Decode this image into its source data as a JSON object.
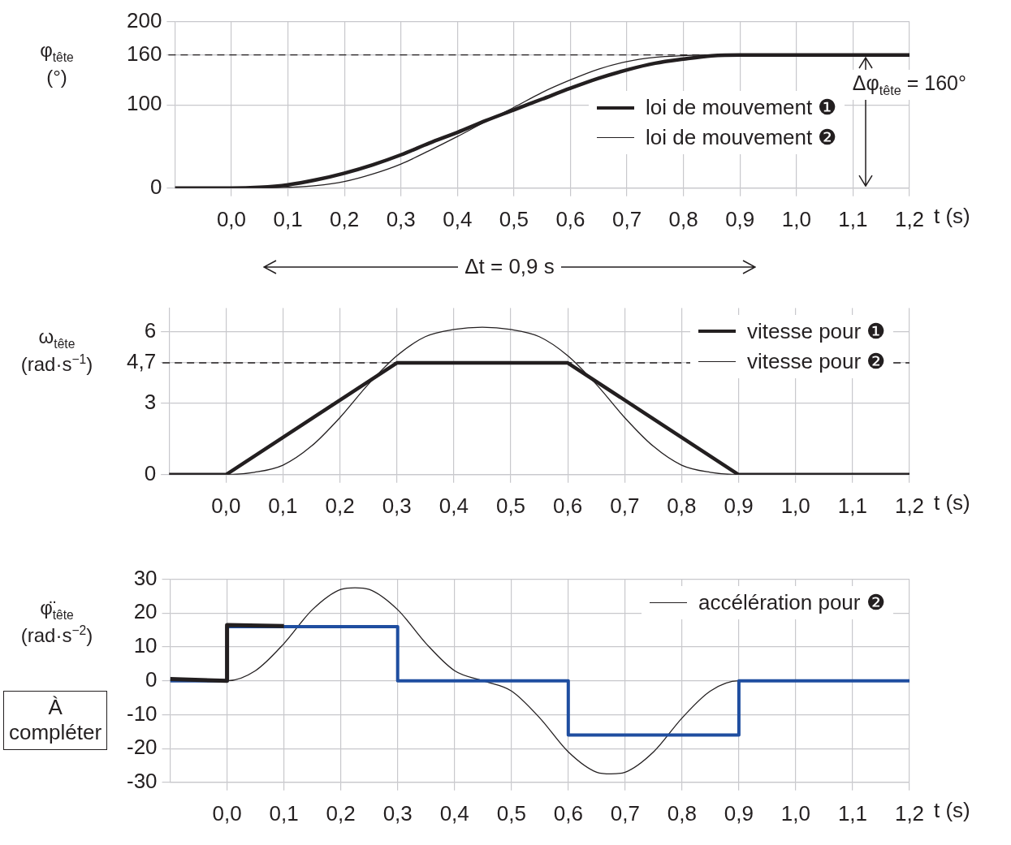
{
  "chart_data": [
    {
      "type": "line",
      "xlabel": "t (s)",
      "ylabel": "φ$_{tête}$ (°)",
      "xlim": [
        -0.1,
        1.2
      ],
      "ylim": [
        0,
        200
      ],
      "xticks": [
        {
          "value": 0,
          "label": "0,0"
        },
        {
          "value": 0.1,
          "label": "0,1"
        },
        {
          "value": 0.2,
          "label": "0,2"
        },
        {
          "value": 0.3,
          "label": "0,3"
        },
        {
          "value": 0.4,
          "label": "0,4"
        },
        {
          "value": 0.5,
          "label": "0,5"
        },
        {
          "value": 0.6,
          "label": "0,6"
        },
        {
          "value": 0.7,
          "label": "0,7"
        },
        {
          "value": 0.8,
          "label": "0,8"
        },
        {
          "value": 0.9,
          "label": "0,9"
        },
        {
          "value": 1,
          "label": "1,0"
        },
        {
          "value": 1.1,
          "label": "1,1"
        },
        {
          "value": 1.2,
          "label": "1,2"
        }
      ],
      "yticks": [
        0,
        100,
        160,
        200
      ],
      "grid": true,
      "legend": "right",
      "ref_lines": [
        {
          "axis": "y",
          "value": 160,
          "line_style": "dashed",
          "color": "#231f20"
        }
      ],
      "annotations": [
        "Δφ$_{tête}$ = 160°",
        "Δt = 0,9 s"
      ],
      "series": [
        {
          "name": "loi de mouvement ❶",
          "color": "#231f20",
          "x": [
            -0.1,
            0,
            0.05,
            0.1,
            0.15,
            0.2,
            0.25,
            0.3,
            0.35,
            0.4,
            0.45,
            0.5,
            0.55,
            0.6,
            0.65,
            0.7,
            0.75,
            0.8,
            0.85,
            0.9,
            1.2
          ],
          "values": [
            0,
            0,
            1,
            4,
            10,
            18,
            28,
            40,
            54,
            67,
            81,
            94,
            107,
            120,
            132,
            142,
            150,
            155,
            159,
            160,
            160
          ]
        },
        {
          "name": "loi de mouvement ❷",
          "color": "#231f20",
          "x": [
            -0.1,
            0,
            0.05,
            0.1,
            0.15,
            0.2,
            0.25,
            0.3,
            0.35,
            0.4,
            0.45,
            0.5,
            0.55,
            0.6,
            0.65,
            0.7,
            0.75,
            0.8,
            0.85,
            0.9,
            1.2
          ],
          "values": [
            0,
            0,
            0,
            1,
            3,
            8,
            17,
            29,
            45,
            62,
            80,
            97,
            115,
            130,
            143,
            152,
            157,
            159,
            160,
            160,
            160
          ]
        }
      ]
    },
    {
      "type": "line",
      "xlabel": "t (s)",
      "ylabel": "ω$_{tête}$ (rad·s$^{−1}$)",
      "xlim": [
        -0.1,
        1.2
      ],
      "ylim": [
        0,
        7
      ],
      "xticks": [
        {
          "value": 0,
          "label": "0,0"
        },
        {
          "value": 0.1,
          "label": "0,1"
        },
        {
          "value": 0.2,
          "label": "0,2"
        },
        {
          "value": 0.3,
          "label": "0,3"
        },
        {
          "value": 0.4,
          "label": "0,4"
        },
        {
          "value": 0.5,
          "label": "0,5"
        },
        {
          "value": 0.6,
          "label": "0,6"
        },
        {
          "value": 0.7,
          "label": "0,7"
        },
        {
          "value": 0.8,
          "label": "0,8"
        },
        {
          "value": 0.9,
          "label": "0,9"
        },
        {
          "value": 1,
          "label": "1,0"
        },
        {
          "value": 1.1,
          "label": "1,1"
        },
        {
          "value": 1.2,
          "label": "1,2"
        }
      ],
      "yticks": [
        0,
        3,
        {
          "value": 4.7,
          "label": "4,7"
        },
        6
      ],
      "grid": true,
      "legend": "top right",
      "ref_lines": [
        {
          "axis": "y",
          "value": 4.7,
          "line_style": "dashed",
          "color": "#231f20"
        }
      ],
      "series": [
        {
          "name": "vitesse pour ❶",
          "color": "#231f20",
          "x": [
            -0.1,
            0,
            0.3,
            0.6,
            0.9,
            1.2
          ],
          "values": [
            0,
            0,
            4.7,
            4.7,
            0,
            0
          ]
        },
        {
          "name": "vitesse pour ❷",
          "color": "#231f20",
          "x": [
            -0.1,
            0,
            0.05,
            0.1,
            0.15,
            0.2,
            0.25,
            0.3,
            0.35,
            0.4,
            0.45,
            0.5,
            0.55,
            0.6,
            0.65,
            0.7,
            0.75,
            0.8,
            0.85,
            0.9,
            1.2
          ],
          "values": [
            0,
            0,
            0.1,
            0.4,
            1.2,
            2.4,
            3.8,
            5.0,
            5.8,
            6.1,
            6.2,
            6.1,
            5.8,
            5.0,
            3.8,
            2.4,
            1.2,
            0.4,
            0.1,
            0,
            0
          ]
        }
      ]
    },
    {
      "type": "line",
      "xlabel": "t (s)",
      "ylabel": "φ̈$_{tête}$ (rad·s$^{−2}$)",
      "xlim": [
        -0.1,
        1.2
      ],
      "ylim": [
        -30,
        30
      ],
      "xticks": [
        {
          "value": 0,
          "label": "0,0"
        },
        {
          "value": 0.1,
          "label": "0,1"
        },
        {
          "value": 0.2,
          "label": "0,2"
        },
        {
          "value": 0.3,
          "label": "0,3"
        },
        {
          "value": 0.4,
          "label": "0,4"
        },
        {
          "value": 0.5,
          "label": "0,5"
        },
        {
          "value": 0.6,
          "label": "0,6"
        },
        {
          "value": 0.7,
          "label": "0,7"
        },
        {
          "value": 0.8,
          "label": "0,8"
        },
        {
          "value": 0.9,
          "label": "0,9"
        },
        {
          "value": 1,
          "label": "1,0"
        },
        {
          "value": 1.1,
          "label": "1,1"
        },
        {
          "value": 1.2,
          "label": "1,2"
        }
      ],
      "yticks": [
        -30,
        -20,
        -10,
        0,
        10,
        20,
        30
      ],
      "grid": true,
      "legend": "top right",
      "annotations": [
        "À compléter"
      ],
      "series": [
        {
          "name": "accélération pour ❷",
          "color": "#231f20",
          "x": [
            -0.1,
            0,
            0.05,
            0.1,
            0.15,
            0.2,
            0.225,
            0.25,
            0.3,
            0.35,
            0.4,
            0.45,
            0.5,
            0.55,
            0.6,
            0.65,
            0.675,
            0.7,
            0.75,
            0.8,
            0.85,
            0.9,
            1.2
          ],
          "values": [
            0,
            0,
            3,
            11,
            21,
            27,
            27.5,
            27,
            21,
            11,
            3,
            0,
            -3,
            -11,
            -21,
            -27,
            -27.5,
            -27,
            -21,
            -11,
            -3,
            0,
            0
          ]
        },
        {
          "color": "#1f4ea0",
          "x": [
            -0.1,
            0,
            0,
            0.3,
            0.3,
            0.6,
            0.6,
            0.9,
            0.9,
            1.2
          ],
          "values": [
            0,
            0,
            16,
            16,
            0,
            0,
            -16,
            -16,
            0,
            0
          ]
        },
        {
          "color": "#231f20",
          "x": [
            -0.1,
            0,
            0,
            0.1
          ],
          "values": [
            0.5,
            0,
            16.5,
            16.2
          ]
        }
      ]
    }
  ]
}
